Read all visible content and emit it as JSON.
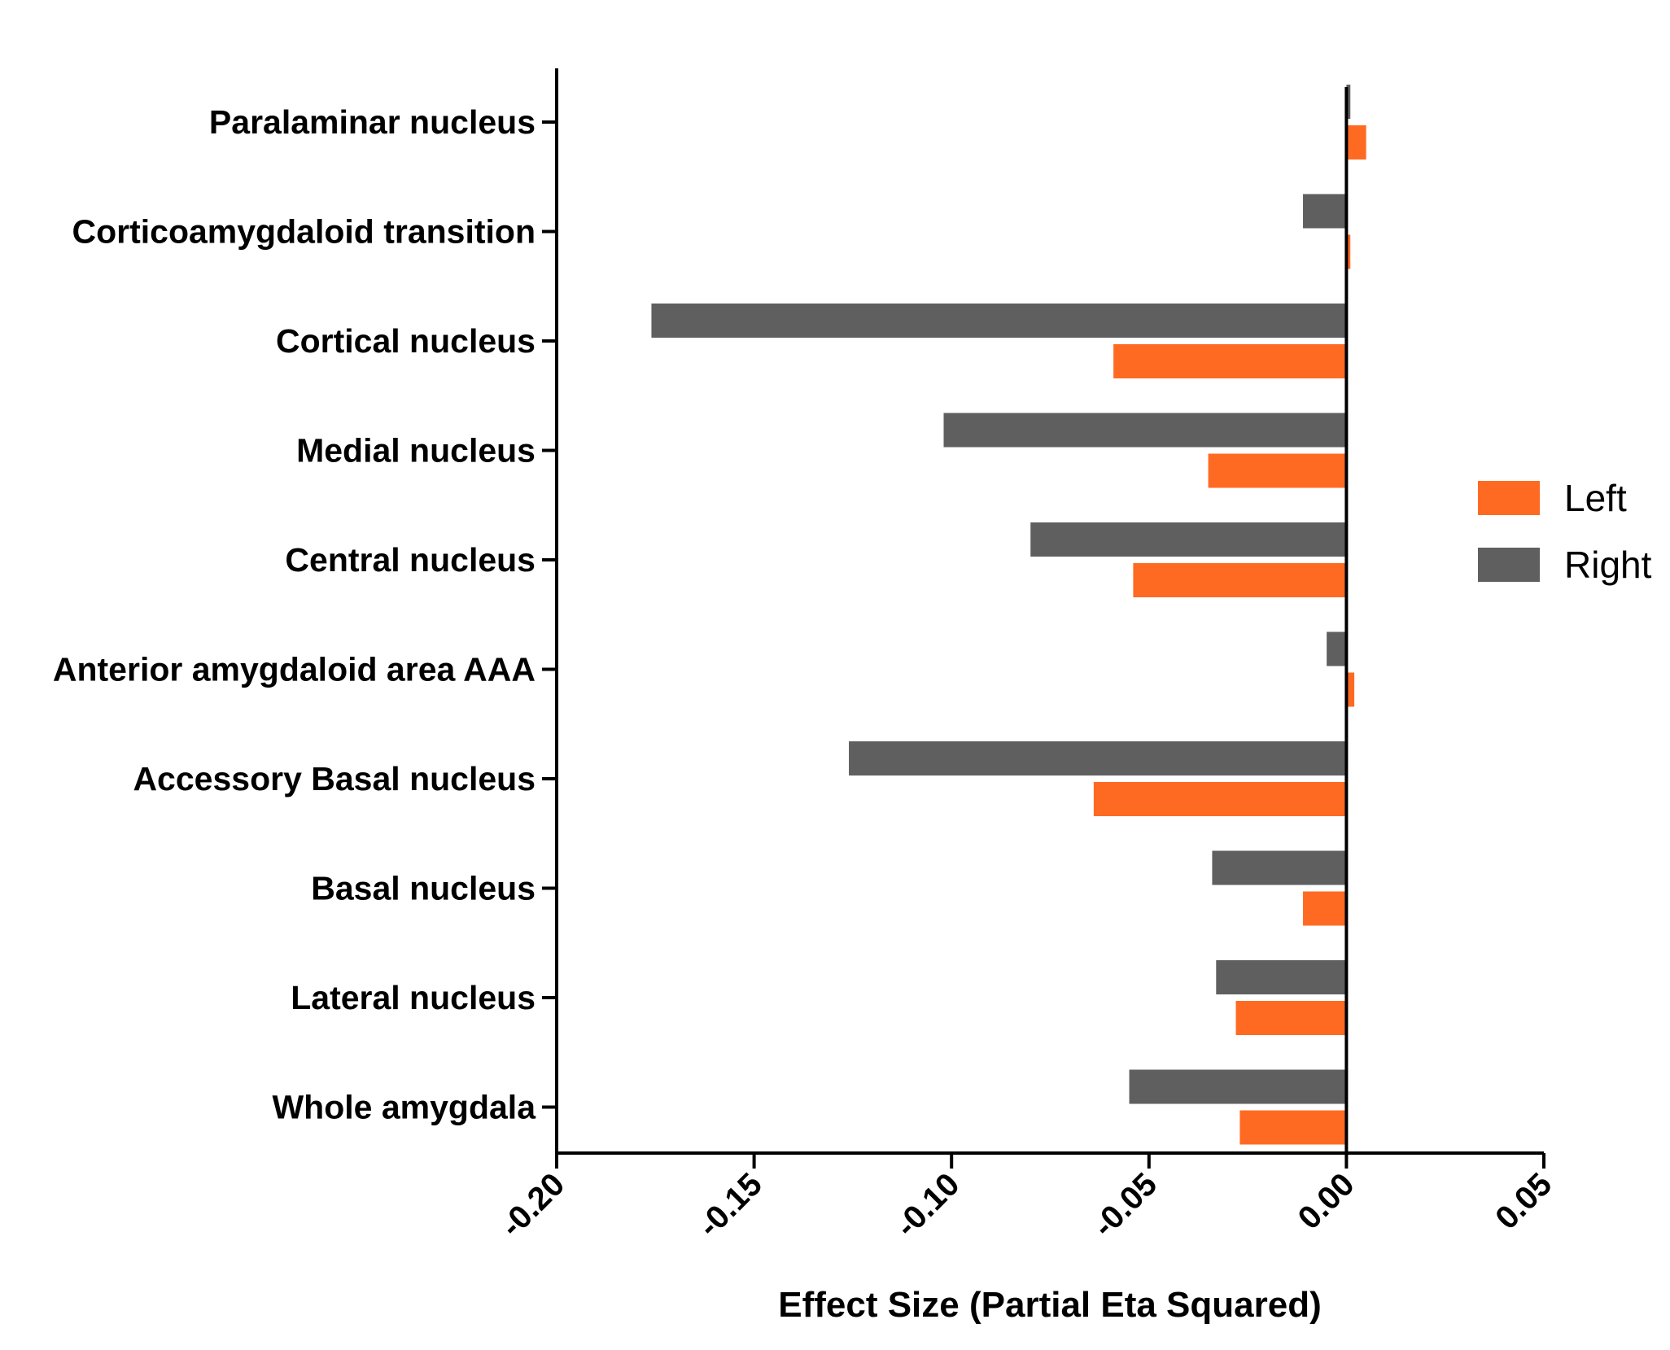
{
  "chart_data": {
    "type": "bar",
    "orientation": "horizontal",
    "categories": [
      "Paralaminar nucleus",
      "Corticoamygdaloid transition",
      "Cortical nucleus",
      "Medial nucleus",
      "Central nucleus",
      "Anterior amygdaloid area AAA",
      "Accessory Basal nucleus",
      "Basal nucleus",
      "Lateral nucleus",
      "Whole amygdala"
    ],
    "series": [
      {
        "name": "Right",
        "color": "#5f5f5f",
        "values": [
          0.001,
          -0.011,
          -0.176,
          -0.102,
          -0.08,
          -0.005,
          -0.126,
          -0.034,
          -0.033,
          -0.055
        ]
      },
      {
        "name": "Left",
        "color": "#ff6a23",
        "values": [
          0.005,
          0.001,
          -0.059,
          -0.035,
          -0.054,
          0.002,
          -0.064,
          -0.011,
          -0.028,
          -0.027
        ]
      }
    ],
    "xlabel": "Effect Size (Partial Eta Squared)",
    "ylabel": "",
    "xlim": [
      -0.2,
      0.05
    ],
    "xticks": [
      "-0.20",
      "-0.15",
      "-0.10",
      "-0.05",
      "0.00",
      "0.05"
    ],
    "legend": {
      "position": "right",
      "entries": [
        {
          "label": "Left",
          "color": "#ff6a23"
        },
        {
          "label": "Right",
          "color": "#5f5f5f"
        }
      ]
    },
    "grid": false
  }
}
